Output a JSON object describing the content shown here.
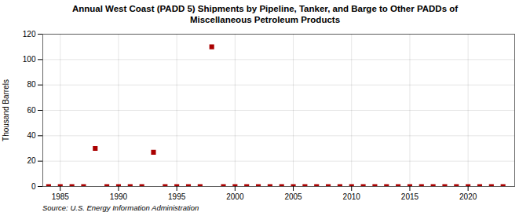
{
  "chart_data": {
    "type": "scatter",
    "title": "Annual West Coast (PADD 5) Shipments by Pipeline, Tanker, and Barge to Other PADDs of\nMiscellaneous Petroleum Products",
    "ylabel": "Thousand Barrels",
    "source": "Source: U.S. Energy Information Administration",
    "x": [
      1984,
      1985,
      1986,
      1987,
      1988,
      1989,
      1990,
      1991,
      1992,
      1993,
      1994,
      1995,
      1996,
      1997,
      1998,
      1999,
      2000,
      2001,
      2002,
      2003,
      2004,
      2005,
      2006,
      2007,
      2008,
      2009,
      2010,
      2011,
      2012,
      2013,
      2014,
      2015,
      2016,
      2017,
      2018,
      2019,
      2020,
      2021,
      2022,
      2023
    ],
    "values": [
      0,
      0,
      0,
      0,
      30,
      0,
      0,
      0,
      0,
      27,
      0,
      0,
      0,
      0,
      110,
      0,
      0,
      0,
      0,
      0,
      0,
      0,
      0,
      0,
      0,
      0,
      0,
      0,
      0,
      0,
      0,
      0,
      0,
      0,
      0,
      0,
      0,
      0,
      0,
      0
    ],
    "color": "#aa0000",
    "marker": "square",
    "xlim": [
      1983.5,
      2024
    ],
    "ylim": [
      0,
      120
    ],
    "xticks": [
      1985,
      1990,
      1995,
      2000,
      2005,
      2010,
      2015,
      2020
    ],
    "yticks": [
      0,
      20,
      40,
      60,
      80,
      100,
      120
    ],
    "grid": true
  }
}
